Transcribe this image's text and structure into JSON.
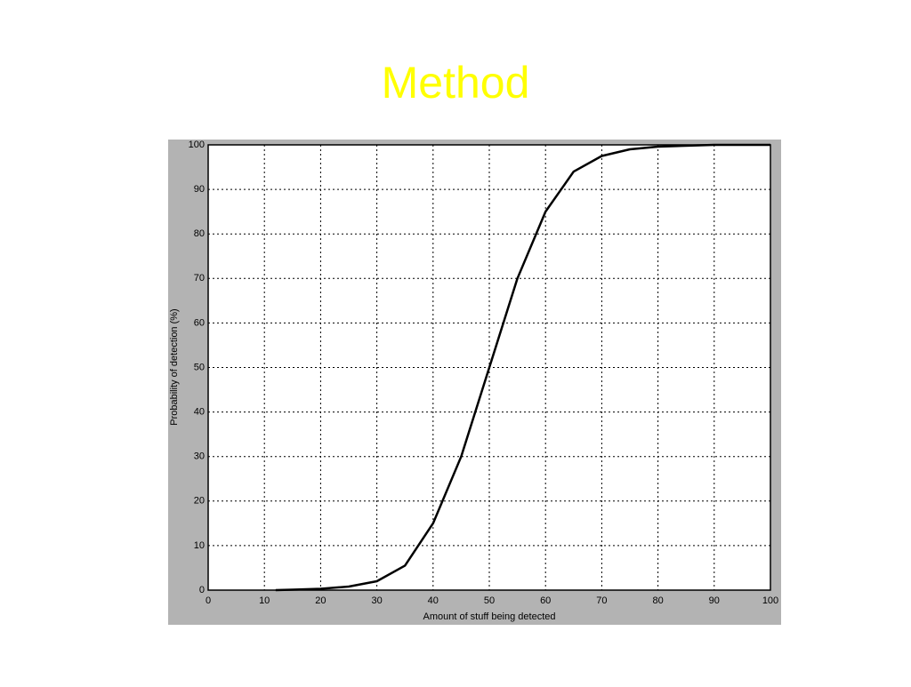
{
  "title": "Method",
  "chart_data": {
    "type": "line",
    "x_label": "Amount of stuff being detected",
    "y_label": "Probability of detection (%)",
    "x": [
      12,
      15,
      20,
      25,
      30,
      35,
      40,
      45,
      50,
      55,
      60,
      65,
      70,
      75,
      80,
      90,
      100
    ],
    "series": [
      {
        "name": "Probability",
        "color": "#000000",
        "values": [
          0,
          0.1,
          0.3,
          0.8,
          2,
          5.5,
          15,
          30,
          50,
          70,
          85,
          94,
          97.5,
          99,
          99.6,
          100,
          100
        ]
      }
    ],
    "xlim": [
      0,
      100
    ],
    "xticks": [
      0,
      10,
      20,
      30,
      40,
      50,
      60,
      70,
      80,
      90,
      100
    ],
    "ylim": [
      0,
      100
    ],
    "yticks": [
      0,
      10,
      20,
      30,
      40,
      50,
      60,
      70,
      80,
      90,
      100
    ],
    "grid": true
  }
}
